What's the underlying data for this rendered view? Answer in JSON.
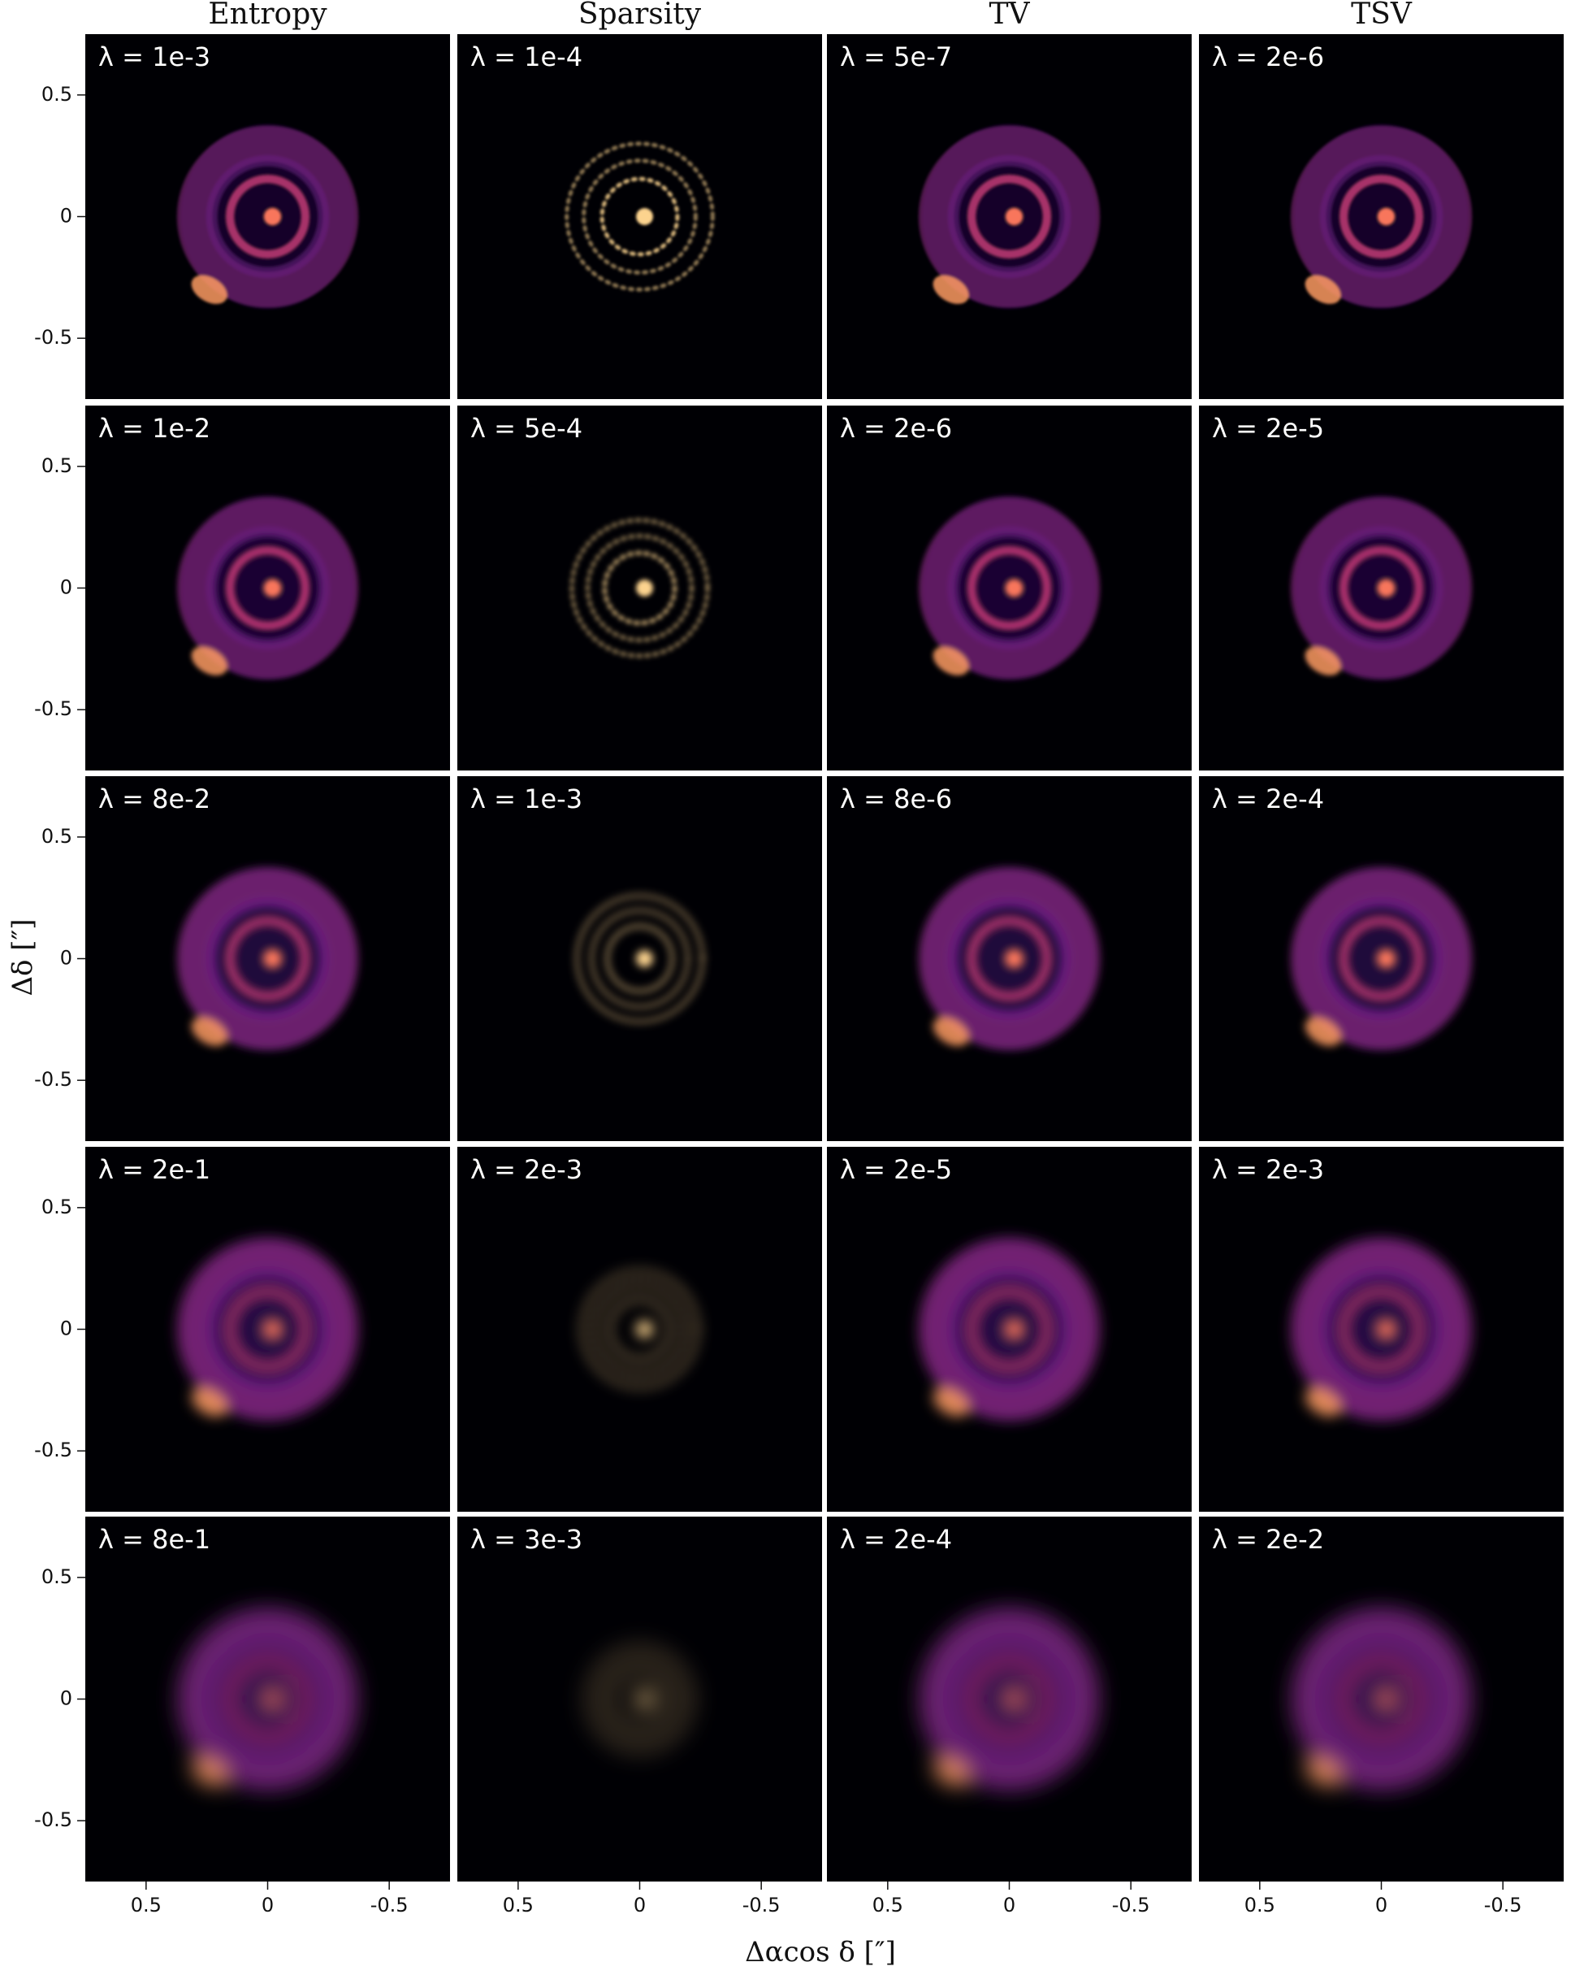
{
  "columns": [
    "Entropy",
    "Sparsity",
    "TV",
    "TSV"
  ],
  "panels": [
    [
      "λ = 1e-3",
      "λ = 1e-4",
      "λ = 5e-7",
      "λ = 2e-6"
    ],
    [
      "λ = 1e-2",
      "λ = 5e-4",
      "λ = 2e-6",
      "λ = 2e-5"
    ],
    [
      "λ = 8e-2",
      "λ = 1e-3",
      "λ = 8e-6",
      "λ = 2e-4"
    ],
    [
      "λ = 2e-1",
      "λ = 2e-3",
      "λ = 2e-5",
      "λ = 2e-3"
    ],
    [
      "λ = 8e-1",
      "λ = 3e-3",
      "λ = 2e-4",
      "λ = 2e-2"
    ]
  ],
  "x_axis": {
    "label": "Δαcos δ [″]",
    "lim": [
      0.75,
      -0.75
    ],
    "ticks": [
      0.5,
      0,
      -0.5
    ]
  },
  "y_axis": {
    "label": "Δδ [″]",
    "lim": [
      -0.75,
      0.75
    ],
    "ticks": [
      0.5,
      0,
      -0.5
    ]
  }
}
